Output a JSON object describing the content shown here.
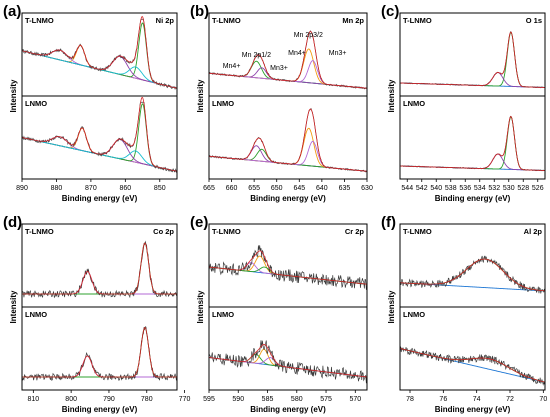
{
  "colors": {
    "data": "#3a3a3a",
    "envelope": "#d62728",
    "background": "#1f77d4",
    "orange": "#f39c12",
    "green": "#2ca02c",
    "purple": "#b36ad6",
    "teal": "#17becf",
    "violet": "#8e44ad"
  },
  "chart_data": [
    {
      "panel": "(a)",
      "type": "line",
      "element_label": "Ni 2p",
      "top_label": "T-LNMO",
      "bottom_label": "LNMO",
      "xlabel": "Binding energy (eV)",
      "ylabel": "Intensity",
      "xlim": [
        890,
        845
      ],
      "xticks": [
        890,
        880,
        870,
        860,
        850
      ],
      "top": {
        "noise": 0.022,
        "bg": [
          0.05,
          0.55,
          0.4
        ],
        "peaks": [
          {
            "c": 873,
            "h": 0.26,
            "w": 1.2,
            "color": "orange"
          },
          {
            "c": 879,
            "h": 0.13,
            "w": 2.2,
            "color": "purple"
          },
          {
            "c": 855,
            "h": 0.76,
            "w": 1.1,
            "color": "green"
          },
          {
            "c": 861.5,
            "h": 0.24,
            "w": 2.1,
            "color": "violet"
          },
          {
            "c": 857,
            "h": 0.15,
            "w": 1.8,
            "color": "teal"
          }
        ]
      },
      "bottom": {
        "noise": 0.022,
        "bg": [
          0.05,
          0.5,
          0.4
        ],
        "peaks": [
          {
            "c": 872.5,
            "h": 0.3,
            "w": 1.2,
            "color": "orange"
          },
          {
            "c": 879,
            "h": 0.12,
            "w": 2.2,
            "color": "purple"
          },
          {
            "c": 855,
            "h": 0.8,
            "w": 1.1,
            "color": "green"
          },
          {
            "c": 861.5,
            "h": 0.26,
            "w": 2.1,
            "color": "violet"
          },
          {
            "c": 857,
            "h": 0.15,
            "w": 1.8,
            "color": "teal"
          }
        ]
      }
    },
    {
      "panel": "(b)",
      "type": "line",
      "element_label": "Mn 2p",
      "top_label": "T-LNMO",
      "bottom_label": "LNMO",
      "xlabel": "Binding energy (eV)",
      "ylabel": "Intensity",
      "xlim": [
        665,
        630
      ],
      "xticks": [
        665,
        660,
        655,
        650,
        645,
        640,
        635,
        630
      ],
      "annotations": [
        "Mn 2p1/2",
        "Mn 2p3/2",
        "Mn4+",
        "Mn3+",
        "Mn4+",
        "Mn3+"
      ],
      "top": {
        "noise": 0.012,
        "bg": [
          0.05,
          0.25,
          0.15
        ],
        "peaks": [
          {
            "c": 654.5,
            "h": 0.22,
            "w": 1.1,
            "color": "green"
          },
          {
            "c": 653.3,
            "h": 0.14,
            "w": 1.0,
            "color": "violet"
          },
          {
            "c": 642.9,
            "h": 0.45,
            "w": 1.1,
            "color": "orange"
          },
          {
            "c": 642.0,
            "h": 0.3,
            "w": 1.0,
            "color": "purple"
          }
        ]
      },
      "bottom": {
        "noise": 0.012,
        "bg": [
          0.05,
          0.25,
          0.15
        ],
        "peaks": [
          {
            "c": 654.5,
            "h": 0.2,
            "w": 1.1,
            "color": "violet"
          },
          {
            "c": 653.3,
            "h": 0.16,
            "w": 1.0,
            "color": "green"
          },
          {
            "c": 642.9,
            "h": 0.5,
            "w": 1.1,
            "color": "orange"
          },
          {
            "c": 642.0,
            "h": 0.33,
            "w": 1.0,
            "color": "purple"
          }
        ]
      }
    },
    {
      "panel": "(c)",
      "type": "line",
      "element_label": "O 1s",
      "top_label": "T-LNMO",
      "bottom_label": "LNMO",
      "xlabel": "Binding energy (eV)",
      "ylabel": "Intensity",
      "xlim": [
        545,
        525
      ],
      "xticks": [
        544,
        542,
        540,
        538,
        536,
        534,
        532,
        530,
        528,
        526
      ],
      "top": {
        "noise": 0.006,
        "bg": [
          0.06,
          0.12,
          0.1
        ],
        "peaks": [
          {
            "c": 529.7,
            "h": 0.72,
            "w": 0.5,
            "color": "green"
          },
          {
            "c": 531.5,
            "h": 0.18,
            "w": 0.7,
            "color": "violet"
          }
        ]
      },
      "bottom": {
        "noise": 0.006,
        "bg": [
          0.06,
          0.12,
          0.1
        ],
        "peaks": [
          {
            "c": 529.7,
            "h": 0.7,
            "w": 0.5,
            "color": "green"
          },
          {
            "c": 531.5,
            "h": 0.2,
            "w": 0.7,
            "color": "violet"
          }
        ]
      }
    },
    {
      "panel": "(d)",
      "type": "line",
      "element_label": "Co 2p",
      "top_label": "T-LNMO",
      "bottom_label": "LNMO",
      "xlabel": "Binding energy (eV)",
      "ylabel": "Intensity",
      "xlim": [
        813,
        772
      ],
      "xticks": [
        810,
        800,
        790,
        780,
        770
      ],
      "top": {
        "noise": 0.045,
        "bg": [
          0.12,
          0.12,
          0.12
        ],
        "peaks": [
          {
            "c": 795.7,
            "h": 0.3,
            "w": 1.2,
            "color": "purple"
          },
          {
            "c": 780.5,
            "h": 0.68,
            "w": 1.0,
            "color": "green"
          }
        ]
      },
      "bottom": {
        "noise": 0.045,
        "bg": [
          0.12,
          0.12,
          0.12
        ],
        "peaks": [
          {
            "c": 795.7,
            "h": 0.28,
            "w": 1.2,
            "color": "purple"
          },
          {
            "c": 780.5,
            "h": 0.66,
            "w": 1.0,
            "color": "green"
          }
        ]
      }
    },
    {
      "panel": "(e)",
      "type": "line",
      "element_label": "Cr 2p",
      "top_label": "T-LNMO",
      "bottom_label": "LNMO",
      "xlabel": "Binding energy (eV)",
      "ylabel": "Intensity",
      "xlim": [
        595,
        568
      ],
      "xticks": [
        595,
        590,
        585,
        580,
        575,
        570
      ],
      "top": {
        "noise": 0.085,
        "bg": [
          0.25,
          0.48,
          0.55
        ],
        "peaks": [
          {
            "c": 586.3,
            "h": 0.22,
            "w": 0.8,
            "color": "orange"
          },
          {
            "c": 587.8,
            "h": 0.12,
            "w": 0.8,
            "color": "purple"
          },
          {
            "c": 585.5,
            "h": 0.08,
            "w": 0.8,
            "color": "green"
          }
        ]
      },
      "bottom": {
        "noise": 0.085,
        "bg": [
          0.12,
          0.38,
          0.45
        ],
        "peaks": [
          {
            "c": 585.6,
            "h": 0.2,
            "w": 0.7,
            "color": "orange"
          },
          {
            "c": 587.0,
            "h": 0.12,
            "w": 0.8,
            "color": "green"
          },
          {
            "c": 584.5,
            "h": 0.1,
            "w": 0.8,
            "color": "purple"
          }
        ]
      }
    },
    {
      "panel": "(f)",
      "type": "line",
      "element_label": "Al 2p",
      "top_label": "T-LNMO",
      "bottom_label": "LNMO",
      "xlabel": "Binding energy (eV)",
      "ylabel": "Intensity",
      "xlim": [
        78.6,
        69.9
      ],
      "xticks": [
        78,
        76,
        74,
        72,
        70
      ],
      "top": {
        "noise": 0.05,
        "bg": [
          0.16,
          0.27,
          0.3
        ],
        "peaks": [
          {
            "c": 73.5,
            "h": 0.38,
            "w": 1.1,
            "color": "green"
          }
        ]
      },
      "bottom": {
        "noise": 0.05,
        "bg": [
          0.05,
          0.5,
          0.5
        ],
        "peaks": [
          {
            "c": 73.2,
            "h": 0.14,
            "w": 1.1,
            "color": "green"
          }
        ]
      }
    }
  ]
}
